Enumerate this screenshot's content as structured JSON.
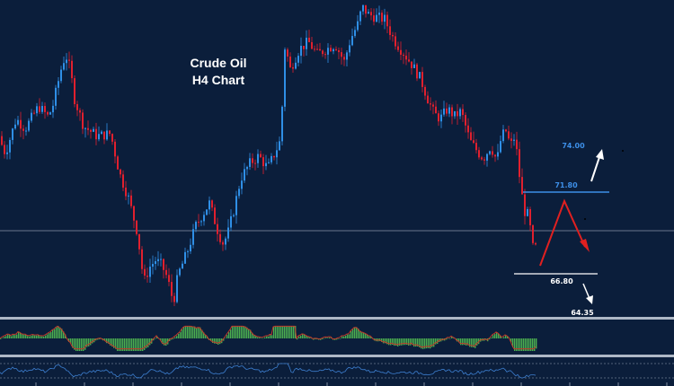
{
  "colors": {
    "background": "#0b1e3b",
    "bull": "#2f8fe6",
    "bear": "#e0202e",
    "osc_bar": "#4caf50",
    "osc_line": "#c0392b",
    "panel_divider": "#aeb8c6",
    "level_blue": "#3d8fe8",
    "level_white": "#ffffff",
    "arrow_red": "#e02020",
    "arrow_white": "#ffffff"
  },
  "chart_data": {
    "type": "candlestick",
    "title_lines": [
      "Crude Oil",
      "H4 Chart"
    ],
    "levels": [
      {
        "name": "resistance_target",
        "label": "74.00",
        "color": "level_blue",
        "line": false
      },
      {
        "name": "resistance",
        "label": "71.80",
        "color": "level_blue",
        "line": true
      },
      {
        "name": "support",
        "label": "66.80",
        "color": "level_white",
        "line": true
      },
      {
        "name": "support_target",
        "label": "64.35",
        "color": "level_white",
        "line": false
      }
    ],
    "price_path": [
      [
        0,
        70.9
      ],
      [
        8,
        70.2
      ],
      [
        20,
        71.6
      ],
      [
        30,
        71.2
      ],
      [
        45,
        72.1
      ],
      [
        55,
        71.7
      ],
      [
        60,
        72.0
      ],
      [
        70,
        73.6
      ],
      [
        75,
        74.2
      ],
      [
        80,
        73.6
      ],
      [
        85,
        72.4
      ],
      [
        95,
        71.3
      ],
      [
        110,
        70.9
      ],
      [
        125,
        71.0
      ],
      [
        135,
        69.4
      ],
      [
        145,
        68.4
      ],
      [
        155,
        67.0
      ],
      [
        162,
        65.0
      ],
      [
        168,
        65.6
      ],
      [
        175,
        65.9
      ],
      [
        182,
        65.7
      ],
      [
        188,
        65.2
      ],
      [
        195,
        64.2
      ],
      [
        200,
        65.3
      ],
      [
        210,
        66.2
      ],
      [
        220,
        67.3
      ],
      [
        235,
        68.2
      ],
      [
        245,
        67.0
      ],
      [
        250,
        66.6
      ],
      [
        255,
        66.9
      ],
      [
        262,
        67.9
      ],
      [
        270,
        69.2
      ],
      [
        280,
        69.8
      ],
      [
        290,
        70.1
      ],
      [
        300,
        69.6
      ],
      [
        310,
        70.4
      ],
      [
        315,
        70.8
      ],
      [
        318,
        74.7
      ],
      [
        325,
        73.6
      ],
      [
        335,
        74.4
      ],
      [
        345,
        74.7
      ],
      [
        355,
        74.2
      ],
      [
        365,
        74.4
      ],
      [
        375,
        74.6
      ],
      [
        385,
        73.9
      ],
      [
        392,
        74.8
      ],
      [
        400,
        75.4
      ],
      [
        405,
        76.1
      ],
      [
        412,
        75.8
      ],
      [
        420,
        75.7
      ],
      [
        430,
        75.6
      ],
      [
        440,
        74.8
      ],
      [
        450,
        74.3
      ],
      [
        460,
        73.8
      ],
      [
        470,
        73.2
      ],
      [
        478,
        72.4
      ],
      [
        485,
        71.8
      ],
      [
        492,
        71.6
      ],
      [
        500,
        72.0
      ],
      [
        508,
        71.7
      ],
      [
        515,
        71.9
      ],
      [
        525,
        70.7
      ],
      [
        535,
        70.2
      ],
      [
        540,
        70.0
      ],
      [
        548,
        70.5
      ],
      [
        555,
        69.9
      ],
      [
        560,
        70.9
      ],
      [
        565,
        71.1
      ],
      [
        570,
        70.5
      ],
      [
        575,
        70.9
      ],
      [
        580,
        69.3
      ],
      [
        585,
        67.9
      ],
      [
        590,
        67.7
      ],
      [
        595,
        66.4
      ]
    ],
    "volume_like_oscillator": true,
    "lower_oscillator": true
  }
}
